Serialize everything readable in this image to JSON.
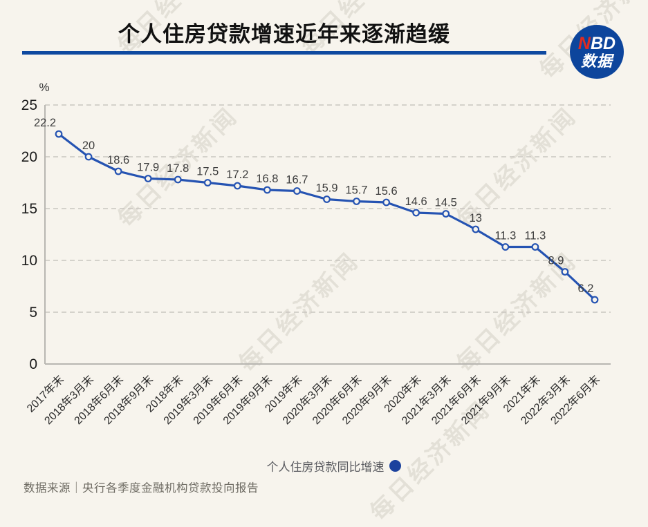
{
  "header": {
    "title": "个人住房贷款增速近年来逐渐趋缓"
  },
  "logo": {
    "n": "N",
    "bd": "BD",
    "line2": "数据"
  },
  "watermark": {
    "text": "每日经济新闻"
  },
  "legend": {
    "label": "个人住房贷款同比增速"
  },
  "footer": {
    "source": "数据来源｜央行各季度金融机构贷款投向报告"
  },
  "colors": {
    "background": "#f7f4ed",
    "line": "#2553b2",
    "divider": "#0e49a0",
    "logo_bg": "#0d459c",
    "logo_red": "#e02b20",
    "legend_dot": "#1c429d",
    "grid": "#c9c6c0",
    "axis": "#b8b6b1"
  },
  "chart_data": {
    "type": "line",
    "title": "个人住房贷款增速近年来逐渐趋缓",
    "unit": "%",
    "categories": [
      "2017年末",
      "2018年3月末",
      "2018年6月末",
      "2018年9月末",
      "2018年末",
      "2019年3月末",
      "2019年6月末",
      "2019年9月末",
      "2019年末",
      "2020年3月末",
      "2020年6月末",
      "2020年9月末",
      "2020年末",
      "2021年3月末",
      "2021年6月末",
      "2021年9月末",
      "2021年末",
      "2022年3月末",
      "2022年6月末"
    ],
    "series": [
      {
        "name": "个人住房贷款同比增速",
        "values": [
          22.2,
          20,
          18.6,
          17.9,
          17.8,
          17.5,
          17.2,
          16.8,
          16.7,
          15.9,
          15.7,
          15.6,
          14.6,
          14.5,
          13,
          11.3,
          11.3,
          8.9,
          6.2
        ]
      }
    ],
    "xlabel": "",
    "ylabel": "%",
    "ylim": [
      0,
      25
    ],
    "yticks": [
      0,
      5,
      10,
      15,
      20,
      25
    ],
    "grid": "dashed-horizontal",
    "legend_position": "bottom",
    "marker": "open-circle",
    "line_color": "#2553b2",
    "data_labels": true
  }
}
